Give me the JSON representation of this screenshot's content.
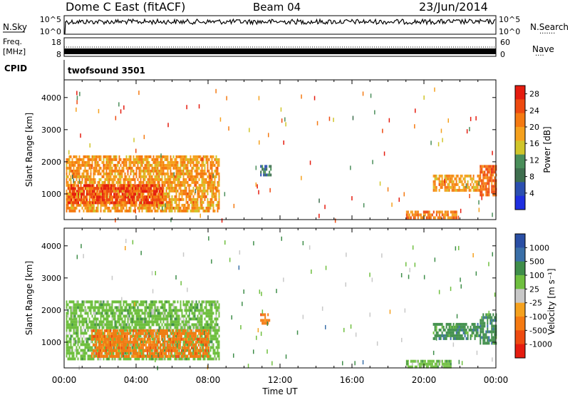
{
  "header": {
    "station": "Dome C East (fitACF)",
    "beam": "Beam 04",
    "date": "23/Jun/2014"
  },
  "panels": {
    "nsky": {
      "label": "N.Sky",
      "y_tick_top": "10^5",
      "y_tick_bottom": "10^0",
      "right_label": "N.Search",
      "right_tick_top": "10^5",
      "right_tick_bottom": "10^0",
      "legend_dots": "·······"
    },
    "freq": {
      "label_line1": "Freq.",
      "label_line2": "[MHz]",
      "y_tick_top": "18",
      "y_tick_bottom": "8",
      "right_label": "Nave",
      "right_tick_top": "60",
      "right_tick_bottom": "0",
      "legend_dots": "····"
    },
    "cpid": {
      "label": "CPID",
      "program": "twofsound 3501"
    }
  },
  "colors": {
    "power": [
      "#1f2fe0",
      "#2b4fb0",
      "#3f6f4f",
      "#4a8e5a",
      "#d0c52a",
      "#f5a11e",
      "#f57a12",
      "#ee4a10",
      "#e51c0f"
    ],
    "velocity": [
      "#e51c0f",
      "#ee4a10",
      "#f57a12",
      "#f5a11e",
      "#c8c8c8",
      "#6fbf3f",
      "#3f8e4a",
      "#3a6fa8",
      "#2a4fa5"
    ]
  },
  "chart_data": [
    {
      "type": "heatmap",
      "title": "",
      "xlabel": "Time UT",
      "ylabel": "Slant Range [km]",
      "x_ticks": [
        "00:00",
        "04:00",
        "08:00",
        "12:00",
        "16:00",
        "20:00",
        "00:00"
      ],
      "y_ticks": [
        "1000",
        "2000",
        "3000",
        "4000"
      ],
      "xlim": [
        0,
        24
      ],
      "ylim": [
        200,
        4550
      ],
      "colorbar": {
        "label": "Power [dB]",
        "ticks": [
          "4",
          "8",
          "12",
          "16",
          "20",
          "24",
          "28"
        ],
        "range": [
          0,
          30
        ]
      },
      "regions": [
        {
          "x": [
            0.1,
            8.6
          ],
          "y": [
            500,
            2200
          ],
          "value": 20
        },
        {
          "x": [
            0.2,
            5.5
          ],
          "y": [
            700,
            1300
          ],
          "value": 27
        },
        {
          "x": [
            10.9,
            11.5
          ],
          "y": [
            1550,
            1900
          ],
          "value": 8
        },
        {
          "x": [
            19.0,
            21.8
          ],
          "y": [
            300,
            480
          ],
          "value": 22
        },
        {
          "x": [
            20.5,
            23.1
          ],
          "y": [
            1100,
            1600
          ],
          "value": 20
        },
        {
          "x": [
            23.1,
            24.0
          ],
          "y": [
            1000,
            1900
          ],
          "value": 24
        }
      ]
    },
    {
      "type": "heatmap",
      "title": "",
      "xlabel": "Time UT",
      "ylabel": "Slant Range [km]",
      "x_ticks": [
        "00:00",
        "04:00",
        "08:00",
        "12:00",
        "16:00",
        "20:00",
        "00:00"
      ],
      "y_ticks": [
        "1000",
        "2000",
        "3000",
        "4000"
      ],
      "xlim": [
        0,
        24
      ],
      "ylim": [
        200,
        4550
      ],
      "colorbar": {
        "label": "Velocity [m s⁻¹]",
        "ticks": [
          "1000",
          "500",
          "100",
          "25",
          "-25",
          "-100",
          "-500",
          "-1000"
        ]
      },
      "regions": [
        {
          "x": [
            0.1,
            8.6
          ],
          "y": [
            500,
            2300
          ],
          "value": 50
        },
        {
          "x": [
            1.5,
            8.0
          ],
          "y": [
            550,
            1400
          ],
          "value": -300
        },
        {
          "x": [
            10.9,
            11.4
          ],
          "y": [
            1550,
            1900
          ],
          "value": -300
        },
        {
          "x": [
            19.0,
            21.5
          ],
          "y": [
            250,
            450
          ],
          "value": 80
        },
        {
          "x": [
            20.5,
            23.1
          ],
          "y": [
            1100,
            1600
          ],
          "value": 200
        },
        {
          "x": [
            23.1,
            24.0
          ],
          "y": [
            1000,
            1900
          ],
          "value": 300
        }
      ]
    }
  ]
}
